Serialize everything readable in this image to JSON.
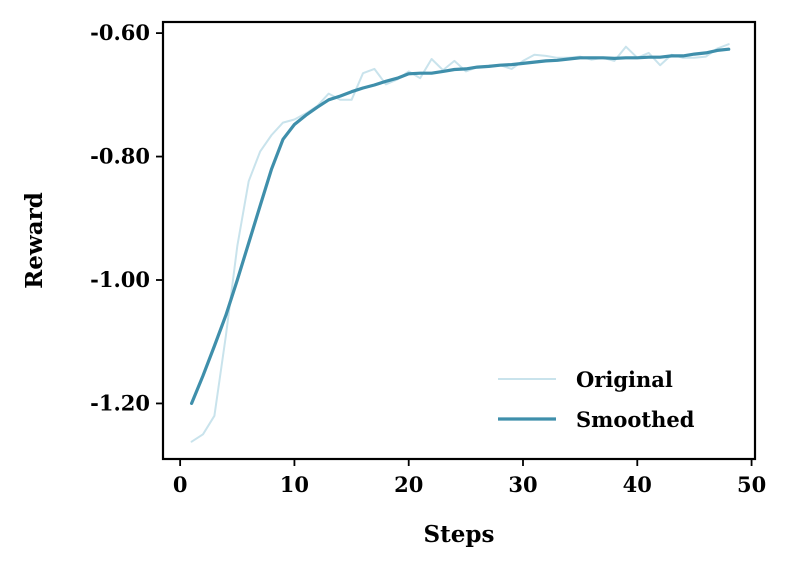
{
  "chart_data": {
    "type": "line",
    "xlabel": "Steps",
    "ylabel": "Reward",
    "xlim": [
      -1.5,
      50.3
    ],
    "ylim": [
      -1.29,
      -0.582
    ],
    "xticks": [
      0,
      10,
      20,
      30,
      40,
      50
    ],
    "yticks": [
      -1.2,
      -1.0,
      -0.8,
      -0.6
    ],
    "xtick_labels": [
      "0",
      "10",
      "20",
      "30",
      "40",
      "50"
    ],
    "ytick_labels": [
      "-1.20",
      "-1.00",
      "-0.80",
      "-0.60"
    ],
    "grid": false,
    "legend_position": "lower-right",
    "series": [
      {
        "name": "Original",
        "color": "#c9e3ec",
        "x": [
          1,
          2,
          3,
          4,
          5,
          6,
          7,
          8,
          9,
          10,
          11,
          12,
          13,
          14,
          15,
          16,
          17,
          18,
          19,
          20,
          21,
          22,
          23,
          24,
          25,
          26,
          27,
          28,
          29,
          30,
          31,
          32,
          33,
          34,
          35,
          36,
          37,
          38,
          39,
          40,
          41,
          42,
          43,
          44,
          45,
          46,
          47,
          48
        ],
        "y": [
          -1.262,
          -1.25,
          -1.22,
          -1.09,
          -0.945,
          -0.84,
          -0.792,
          -0.765,
          -0.745,
          -0.74,
          -0.73,
          -0.718,
          -0.698,
          -0.708,
          -0.708,
          -0.665,
          -0.658,
          -0.683,
          -0.675,
          -0.662,
          -0.673,
          -0.642,
          -0.66,
          -0.645,
          -0.662,
          -0.655,
          -0.653,
          -0.652,
          -0.658,
          -0.645,
          -0.635,
          -0.637,
          -0.64,
          -0.64,
          -0.638,
          -0.643,
          -0.64,
          -0.645,
          -0.622,
          -0.64,
          -0.632,
          -0.652,
          -0.635,
          -0.64,
          -0.64,
          -0.638,
          -0.625,
          -0.618
        ]
      },
      {
        "name": "Smoothed",
        "color": "#3f8fab",
        "x": [
          1,
          2,
          3,
          4,
          5,
          6,
          7,
          8,
          9,
          10,
          11,
          12,
          13,
          14,
          15,
          16,
          17,
          18,
          19,
          20,
          21,
          22,
          23,
          24,
          25,
          26,
          27,
          28,
          29,
          30,
          31,
          32,
          33,
          34,
          35,
          36,
          37,
          38,
          39,
          40,
          41,
          42,
          43,
          44,
          45,
          46,
          47,
          48
        ],
        "y": [
          -1.2,
          -1.155,
          -1.107,
          -1.057,
          -1.0,
          -0.94,
          -0.88,
          -0.82,
          -0.772,
          -0.748,
          -0.733,
          -0.72,
          -0.708,
          -0.702,
          -0.695,
          -0.689,
          -0.684,
          -0.678,
          -0.673,
          -0.666,
          -0.665,
          -0.665,
          -0.662,
          -0.659,
          -0.658,
          -0.655,
          -0.654,
          -0.652,
          -0.651,
          -0.649,
          -0.647,
          -0.645,
          -0.644,
          -0.642,
          -0.64,
          -0.64,
          -0.64,
          -0.641,
          -0.64,
          -0.64,
          -0.639,
          -0.639,
          -0.637,
          -0.637,
          -0.634,
          -0.632,
          -0.628,
          -0.626
        ]
      }
    ]
  }
}
